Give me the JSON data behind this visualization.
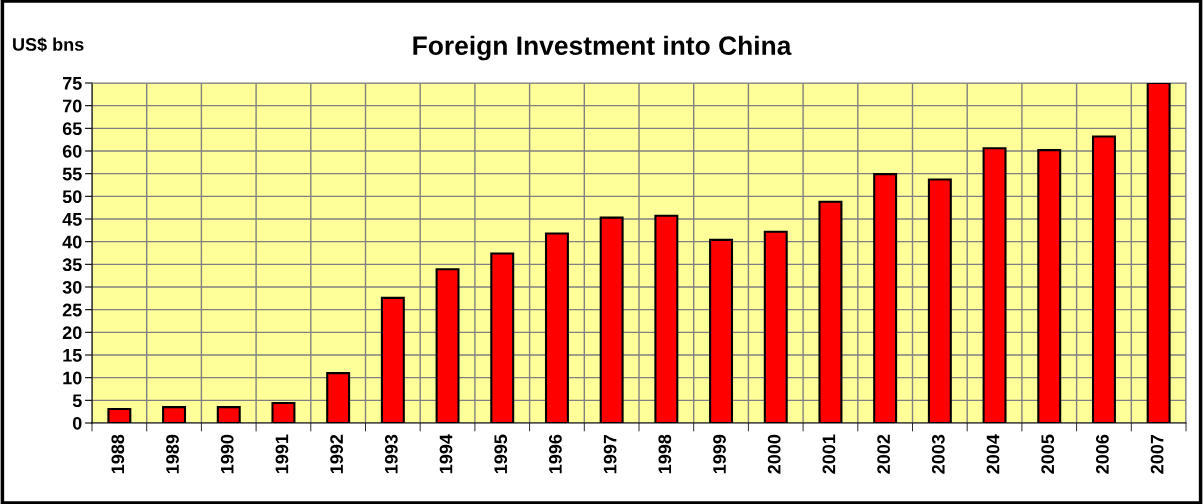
{
  "chart_data": {
    "type": "bar",
    "title": "Foreign Investment into China",
    "ylabel": "US$ bns",
    "categories": [
      "1988",
      "1989",
      "1990",
      "1991",
      "1992",
      "1993",
      "1994",
      "1995",
      "1996",
      "1997",
      "1998",
      "1999",
      "2000",
      "2001",
      "2002",
      "2003",
      "2004",
      "2005",
      "2006",
      "2007"
    ],
    "values": [
      3.1,
      3.5,
      3.5,
      4.4,
      11.0,
      27.6,
      33.9,
      37.4,
      41.8,
      45.3,
      45.7,
      40.4,
      42.2,
      48.8,
      54.9,
      53.7,
      60.6,
      60.2,
      63.2,
      75
    ],
    "color": "#ff0000",
    "ylim": [
      0,
      75
    ],
    "yticks": [
      0,
      5,
      10,
      15,
      20,
      25,
      30,
      35,
      40,
      45,
      50,
      55,
      60,
      65,
      70,
      75
    ],
    "grid": true,
    "legend": false
  }
}
